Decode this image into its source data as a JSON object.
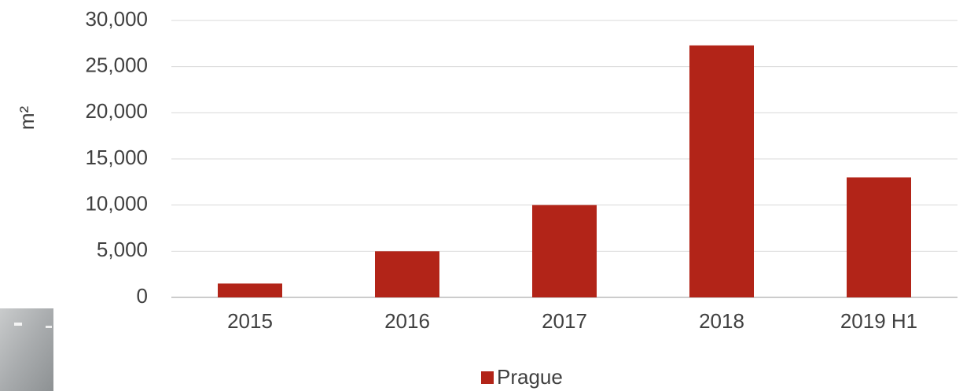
{
  "chart_data": {
    "type": "bar",
    "y_axis_label": "m²",
    "categories": [
      "2015",
      "2016",
      "2017",
      "2018",
      "2019 H1"
    ],
    "series": [
      {
        "name": "Prague",
        "color": "#b22418",
        "values": [
          1500,
          5000,
          10000,
          27300,
          13000
        ]
      }
    ],
    "ylim": [
      0,
      30000
    ],
    "yticks": [
      0,
      {
        "value": 5000,
        "label": "5,000"
      },
      {
        "value": 10000,
        "label": "10,000"
      },
      {
        "value": 15000,
        "label": "15,000"
      },
      {
        "value": 20000,
        "label": "20,000"
      },
      {
        "value": 25000,
        "label": "25,000"
      },
      {
        "value": 30000,
        "label": "30,000"
      }
    ],
    "grid": true,
    "legend": "bottom"
  }
}
